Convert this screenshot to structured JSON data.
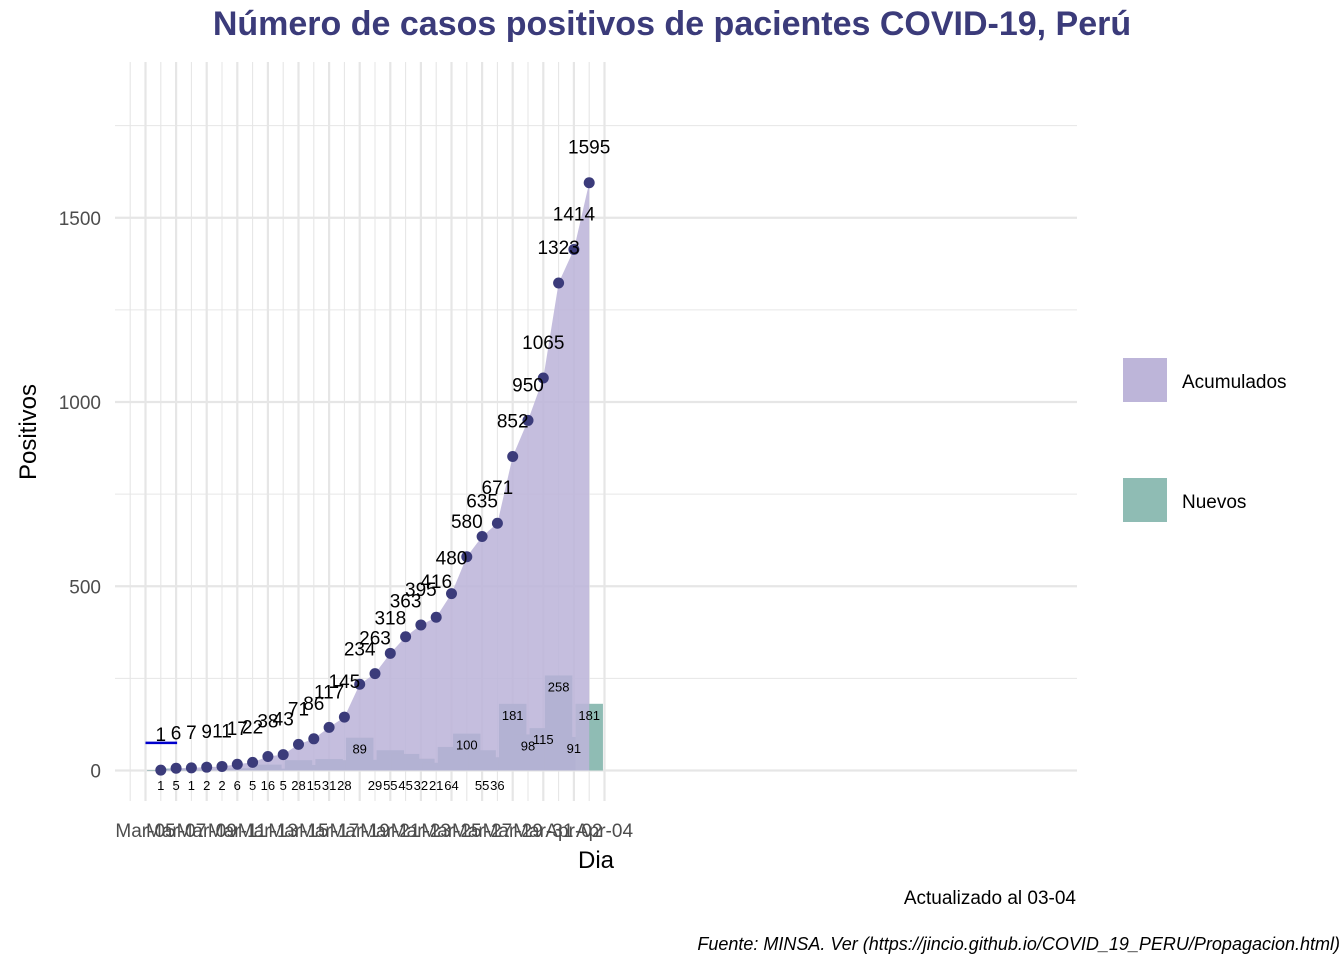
{
  "chart_data": {
    "type": "area",
    "title": "Número de casos positivos de pacientes COVID-19, Perú",
    "xlabel": "Dia",
    "ylabel": "Positivos",
    "caption": "Actualizado al 03-04",
    "source": "Fuente: MINSA. Ver (https://jincio.github.io/COVID_19_PERU/Propagacion.html)",
    "x_ticks": [
      "Mar-05",
      "Mar-07",
      "Mar-09",
      "Mar-11",
      "Mar-13",
      "Mar-15",
      "Mar-17",
      "Mar-19",
      "Mar-21",
      "Mar-23",
      "Mar-25",
      "Mar-27",
      "Mar-29",
      "Mar-31",
      "Apr-02",
      "Apr-04"
    ],
    "y_ticks": [
      0,
      500,
      1000,
      1500
    ],
    "ylim": [
      -90,
      1850
    ],
    "grid": true,
    "legend_position": "right",
    "legend": [
      {
        "label": "Acumulados",
        "color": "#bdb5d9"
      },
      {
        "label": "Nuevos",
        "color": "#8fbcb4"
      }
    ],
    "dates": [
      "Mar-06",
      "Mar-07",
      "Mar-08",
      "Mar-09",
      "Mar-10",
      "Mar-11",
      "Mar-12",
      "Mar-13",
      "Mar-14",
      "Mar-15",
      "Mar-16",
      "Mar-17",
      "Mar-18",
      "Mar-19",
      "Mar-20",
      "Mar-21",
      "Mar-22",
      "Mar-23",
      "Mar-24",
      "Mar-25",
      "Mar-26",
      "Mar-27",
      "Mar-28",
      "Mar-29",
      "Mar-30",
      "Mar-31",
      "Apr-01",
      "Apr-02",
      "Apr-03"
    ],
    "series": [
      {
        "name": "Acumulados",
        "values": [
          1,
          6,
          7,
          9,
          11,
          17,
          22,
          38,
          43,
          71,
          86,
          117,
          145,
          234,
          263,
          318,
          363,
          395,
          416,
          480,
          580,
          635,
          671,
          852,
          950,
          1065,
          1323,
          1414,
          1595
        ]
      },
      {
        "name": "Nuevos",
        "values": [
          1,
          5,
          1,
          2,
          2,
          6,
          5,
          16,
          5,
          28,
          15,
          31,
          28,
          89,
          29,
          55,
          45,
          32,
          21,
          64,
          100,
          55,
          36,
          181,
          98,
          115,
          258,
          91,
          181
        ]
      }
    ],
    "annotation_line": {
      "x_start": "Mar-05",
      "x_end": "Mar-07",
      "y": 75,
      "color": "#0000cc"
    },
    "colors": {
      "area": "#bdb5d9",
      "point": "#3b3b7a",
      "bar": "#6b9da0",
      "bar_last": "#8fbcb4",
      "grid": "#e6e6e6",
      "title": "#3b3b7a"
    }
  }
}
